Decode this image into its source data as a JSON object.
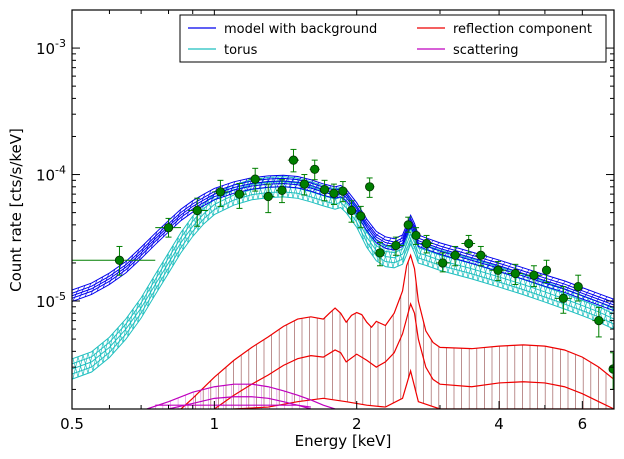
{
  "chart_data": {
    "type": "line",
    "xlabel": "Energy [keV]",
    "ylabel": "Count rate [cts/s/keV]",
    "xscale": "log",
    "yscale": "log",
    "xlim": [
      0.5,
      7.0
    ],
    "ylim": [
      1.4e-06,
      0.002
    ],
    "xticks": [
      {
        "value": 0.5,
        "label": "0.5"
      },
      {
        "value": 1,
        "label": "1"
      },
      {
        "value": 2,
        "label": "2"
      },
      {
        "value": 4,
        "label": "4"
      },
      {
        "value": 6,
        "label": "6"
      }
    ],
    "yticks": [
      {
        "value": 1e-05,
        "base": "10",
        "exp": "-5"
      },
      {
        "value": 0.0001,
        "base": "10",
        "exp": "-4"
      },
      {
        "value": 0.001,
        "base": "10",
        "exp": "-3"
      }
    ],
    "legend_position": "top-right",
    "legend": [
      {
        "label": "model with background",
        "color": "#0000ee"
      },
      {
        "label": "reflection component",
        "color": "#ee0000"
      },
      {
        "label": "torus",
        "color": "#1fbfbf"
      },
      {
        "label": "scattering",
        "color": "#bf00bf"
      }
    ],
    "colors": {
      "data": "#007f00",
      "model": "#0000ee",
      "torus": "#1fbfbf",
      "reflection": "#ee0000",
      "reflection_band": "#a06060",
      "scattering": "#bf00bf"
    },
    "data_points": [
      {
        "x": 0.63,
        "xlo": 0.5,
        "xhi": 0.75,
        "y": 2.1e-05,
        "ylo": 1.6e-05,
        "yhi": 2.7e-05
      },
      {
        "x": 0.8,
        "xlo": 0.75,
        "xhi": 0.85,
        "y": 3.8e-05,
        "ylo": 3.2e-05,
        "yhi": 4.5e-05
      },
      {
        "x": 0.92,
        "xlo": 0.88,
        "xhi": 0.97,
        "y": 5.2e-05,
        "ylo": 3.9e-05,
        "yhi": 6.5e-05
      },
      {
        "x": 1.03,
        "xlo": 0.99,
        "xhi": 1.07,
        "y": 7.3e-05,
        "ylo": 5.6e-05,
        "yhi": 9e-05
      },
      {
        "x": 1.13,
        "xlo": 1.1,
        "xhi": 1.17,
        "y": 7e-05,
        "ylo": 5.4e-05,
        "yhi": 8.5e-05
      },
      {
        "x": 1.22,
        "xlo": 1.18,
        "xhi": 1.26,
        "y": 9.2e-05,
        "ylo": 7.4e-05,
        "yhi": 0.000112
      },
      {
        "x": 1.3,
        "xlo": 1.27,
        "xhi": 1.34,
        "y": 6.7e-05,
        "ylo": 5e-05,
        "yhi": 8.4e-05
      },
      {
        "x": 1.39,
        "xlo": 1.35,
        "xhi": 1.42,
        "y": 7.5e-05,
        "ylo": 6e-05,
        "yhi": 9.1e-05
      },
      {
        "x": 1.47,
        "xlo": 1.43,
        "xhi": 1.51,
        "y": 0.00013,
        "ylo": 0.000105,
        "yhi": 0.000158
      },
      {
        "x": 1.55,
        "xlo": 1.52,
        "xhi": 1.59,
        "y": 8.4e-05,
        "ylo": 6.9e-05,
        "yhi": 0.0001
      },
      {
        "x": 1.63,
        "xlo": 1.59,
        "xhi": 1.67,
        "y": 0.00011,
        "ylo": 9.1e-05,
        "yhi": 0.00013
      },
      {
        "x": 1.71,
        "xlo": 1.67,
        "xhi": 1.75,
        "y": 7.6e-05,
        "ylo": 6.2e-05,
        "yhi": 9e-05
      },
      {
        "x": 1.79,
        "xlo": 1.75,
        "xhi": 1.83,
        "y": 7.1e-05,
        "ylo": 5.8e-05,
        "yhi": 8.4e-05
      },
      {
        "x": 1.87,
        "xlo": 1.83,
        "xhi": 1.91,
        "y": 7.4e-05,
        "ylo": 6.1e-05,
        "yhi": 8.8e-05
      },
      {
        "x": 1.95,
        "xlo": 1.91,
        "xhi": 1.99,
        "y": 5.2e-05,
        "ylo": 4.2e-05,
        "yhi": 6.2e-05
      },
      {
        "x": 2.04,
        "xlo": 1.99,
        "xhi": 2.09,
        "y": 4.7e-05,
        "ylo": 3.8e-05,
        "yhi": 5.6e-05
      },
      {
        "x": 2.13,
        "xlo": 2.09,
        "xhi": 2.18,
        "y": 8e-05,
        "ylo": 6.6e-05,
        "yhi": 9.4e-05
      },
      {
        "x": 2.24,
        "xlo": 2.18,
        "xhi": 2.3,
        "y": 2.4e-05,
        "ylo": 1.9e-05,
        "yhi": 2.9e-05
      },
      {
        "x": 2.42,
        "xlo": 2.32,
        "xhi": 2.52,
        "y": 2.75e-05,
        "ylo": 2.3e-05,
        "yhi": 3.2e-05
      },
      {
        "x": 2.57,
        "xlo": 2.52,
        "xhi": 2.62,
        "y": 4e-05,
        "ylo": 3.5e-05,
        "yhi": 4.6e-05
      },
      {
        "x": 2.67,
        "xlo": 2.62,
        "xhi": 2.72,
        "y": 3.3e-05,
        "ylo": 2.8e-05,
        "yhi": 3.8e-05
      },
      {
        "x": 2.81,
        "xlo": 2.73,
        "xhi": 2.9,
        "y": 2.85e-05,
        "ylo": 2.4e-05,
        "yhi": 3.3e-05
      },
      {
        "x": 3.04,
        "xlo": 2.94,
        "xhi": 3.15,
        "y": 2e-05,
        "ylo": 1.7e-05,
        "yhi": 2.4e-05
      },
      {
        "x": 3.23,
        "xlo": 3.15,
        "xhi": 3.32,
        "y": 2.3e-05,
        "ylo": 1.9e-05,
        "yhi": 2.7e-05
      },
      {
        "x": 3.45,
        "xlo": 3.33,
        "xhi": 3.56,
        "y": 2.85e-05,
        "ylo": 2.4e-05,
        "yhi": 3.3e-05
      },
      {
        "x": 3.66,
        "xlo": 3.56,
        "xhi": 3.77,
        "y": 2.3e-05,
        "ylo": 1.9e-05,
        "yhi": 2.7e-05
      },
      {
        "x": 3.98,
        "xlo": 3.82,
        "xhi": 4.14,
        "y": 1.75e-05,
        "ylo": 1.45e-05,
        "yhi": 2.05e-05
      },
      {
        "x": 4.33,
        "xlo": 4.17,
        "xhi": 4.49,
        "y": 1.65e-05,
        "ylo": 1.35e-05,
        "yhi": 1.95e-05
      },
      {
        "x": 4.74,
        "xlo": 4.55,
        "xhi": 4.94,
        "y": 1.6e-05,
        "ylo": 1.3e-05,
        "yhi": 1.9e-05
      },
      {
        "x": 5.04,
        "xlo": 4.94,
        "xhi": 5.14,
        "y": 1.75e-05,
        "ylo": 1.4e-05,
        "yhi": 2.1e-05
      },
      {
        "x": 5.47,
        "xlo": 5.25,
        "xhi": 5.7,
        "y": 1.05e-05,
        "ylo": 8e-06,
        "yhi": 1.3e-05
      },
      {
        "x": 5.88,
        "xlo": 5.78,
        "xhi": 5.98,
        "y": 1.3e-05,
        "ylo": 1e-05,
        "yhi": 1.6e-05
      },
      {
        "x": 6.5,
        "xlo": 6.3,
        "xhi": 6.7,
        "y": 7e-06,
        "ylo": 5.2e-06,
        "yhi": 8.9e-06
      },
      {
        "x": 6.97,
        "xlo": 6.85,
        "xhi": 7.0,
        "y": 2.9e-06,
        "ylo": 2e-06,
        "yhi": 3.9e-06
      }
    ],
    "series": [
      {
        "key": "model",
        "band_lines": [
          -0.045,
          -0.02,
          0,
          0.02,
          0.045
        ],
        "points": [
          [
            0.5,
            1.1e-05
          ],
          [
            0.55,
            1.25e-05
          ],
          [
            0.6,
            1.5e-05
          ],
          [
            0.65,
            1.85e-05
          ],
          [
            0.7,
            2.4e-05
          ],
          [
            0.75,
            3.1e-05
          ],
          [
            0.8,
            3.9e-05
          ],
          [
            0.85,
            4.8e-05
          ],
          [
            0.9,
            5.6e-05
          ],
          [
            0.95,
            6.3e-05
          ],
          [
            1.0,
            7e-05
          ],
          [
            1.1,
            7.9e-05
          ],
          [
            1.2,
            8.5e-05
          ],
          [
            1.3,
            8.8e-05
          ],
          [
            1.4,
            8.9e-05
          ],
          [
            1.5,
            8.7e-05
          ],
          [
            1.6,
            8.2e-05
          ],
          [
            1.7,
            7.6e-05
          ],
          [
            1.8,
            7.2e-05
          ],
          [
            1.85,
            7.4e-05
          ],
          [
            1.9,
            6.9e-05
          ],
          [
            2.0,
            5.4e-05
          ],
          [
            2.1,
            4e-05
          ],
          [
            2.2,
            3.2e-05
          ],
          [
            2.3,
            2.9e-05
          ],
          [
            2.4,
            2.8e-05
          ],
          [
            2.5,
            3e-05
          ],
          [
            2.55,
            3.6e-05
          ],
          [
            2.6,
            4.3e-05
          ],
          [
            2.65,
            3.7e-05
          ],
          [
            2.7,
            3e-05
          ],
          [
            2.8,
            2.85e-05
          ],
          [
            3.0,
            2.6e-05
          ],
          [
            3.5,
            2.2e-05
          ],
          [
            4.0,
            1.9e-05
          ],
          [
            4.5,
            1.65e-05
          ],
          [
            5.0,
            1.45e-05
          ],
          [
            5.5,
            1.3e-05
          ],
          [
            6.0,
            1.15e-05
          ],
          [
            6.5,
            1.03e-05
          ],
          [
            7.0,
            9.3e-06
          ]
        ]
      },
      {
        "key": "torus",
        "band_lines": [
          -0.08,
          -0.04,
          0,
          0.04,
          0.08
        ],
        "points": [
          [
            0.5,
            2.9e-06
          ],
          [
            0.55,
            3.3e-06
          ],
          [
            0.6,
            4.3e-06
          ],
          [
            0.65,
            6e-06
          ],
          [
            0.7,
            8.8e-06
          ],
          [
            0.75,
            1.35e-05
          ],
          [
            0.8,
            2e-05
          ],
          [
            0.85,
            2.9e-05
          ],
          [
            0.9,
            3.9e-05
          ],
          [
            0.95,
            4.9e-05
          ],
          [
            1.0,
            5.8e-05
          ],
          [
            1.1,
            6.9e-05
          ],
          [
            1.2,
            7.6e-05
          ],
          [
            1.3,
            7.9e-05
          ],
          [
            1.4,
            8e-05
          ],
          [
            1.5,
            7.8e-05
          ],
          [
            1.6,
            7.3e-05
          ],
          [
            1.7,
            6.8e-05
          ],
          [
            1.8,
            6.4e-05
          ],
          [
            1.85,
            6.6e-05
          ],
          [
            1.9,
            6e-05
          ],
          [
            2.0,
            4.6e-05
          ],
          [
            2.1,
            3.2e-05
          ],
          [
            2.2,
            2.5e-05
          ],
          [
            2.3,
            2.25e-05
          ],
          [
            2.4,
            2.2e-05
          ],
          [
            2.5,
            2.35e-05
          ],
          [
            2.55,
            2.8e-05
          ],
          [
            2.6,
            3.4e-05
          ],
          [
            2.65,
            2.9e-05
          ],
          [
            2.7,
            2.4e-05
          ],
          [
            2.8,
            2.3e-05
          ],
          [
            3.0,
            2.1e-05
          ],
          [
            3.5,
            1.8e-05
          ],
          [
            4.0,
            1.55e-05
          ],
          [
            4.5,
            1.35e-05
          ],
          [
            5.0,
            1.18e-05
          ],
          [
            5.5,
            1.04e-05
          ],
          [
            6.0,
            9.2e-06
          ],
          [
            6.5,
            8.2e-06
          ],
          [
            7.0,
            7.2e-06
          ]
        ]
      },
      {
        "key": "reflection",
        "curves": [
          [
            [
              0.85,
              1.4e-06
            ],
            [
              0.9,
              1.7e-06
            ],
            [
              1.0,
              2.5e-06
            ],
            [
              1.1,
              3.4e-06
            ],
            [
              1.2,
              4.3e-06
            ],
            [
              1.3,
              5.2e-06
            ],
            [
              1.4,
              6.3e-06
            ],
            [
              1.5,
              7.2e-06
            ],
            [
              1.6,
              7.5e-06
            ],
            [
              1.7,
              7.2e-06
            ],
            [
              1.75,
              8e-06
            ],
            [
              1.8,
              8.8e-06
            ],
            [
              1.85,
              8e-06
            ],
            [
              1.9,
              6.8e-06
            ],
            [
              1.95,
              7.7e-06
            ],
            [
              2.0,
              8.1e-06
            ],
            [
              2.05,
              7.8e-06
            ],
            [
              2.1,
              6.8e-06
            ],
            [
              2.15,
              6.2e-06
            ],
            [
              2.2,
              6.9e-06
            ],
            [
              2.3,
              6.4e-06
            ],
            [
              2.4,
              8e-06
            ],
            [
              2.5,
              1.2e-05
            ],
            [
              2.55,
              1.9e-05
            ],
            [
              2.6,
              2.3e-05
            ],
            [
              2.65,
              1.8e-05
            ],
            [
              2.7,
              1e-05
            ],
            [
              2.8,
              5.8e-06
            ],
            [
              2.9,
              4.7e-06
            ],
            [
              3.0,
              4.3e-06
            ],
            [
              3.5,
              4.2e-06
            ],
            [
              4.0,
              4.4e-06
            ],
            [
              4.5,
              4.5e-06
            ],
            [
              5.0,
              4.4e-06
            ],
            [
              5.5,
              4.1e-06
            ],
            [
              6.0,
              3.6e-06
            ],
            [
              6.5,
              3e-06
            ],
            [
              7.0,
              2.4e-06
            ]
          ],
          [
            [
              1.0,
              1.4e-06
            ],
            [
              1.1,
              1.8e-06
            ],
            [
              1.2,
              2.2e-06
            ],
            [
              1.3,
              2.6e-06
            ],
            [
              1.4,
              3.1e-06
            ],
            [
              1.5,
              3.5e-06
            ],
            [
              1.6,
              3.7e-06
            ],
            [
              1.7,
              3.6e-06
            ],
            [
              1.8,
              4.1e-06
            ],
            [
              1.85,
              3.9e-06
            ],
            [
              1.9,
              3.3e-06
            ],
            [
              2.0,
              3.8e-06
            ],
            [
              2.1,
              3.4e-06
            ],
            [
              2.2,
              3e-06
            ],
            [
              2.3,
              3.3e-06
            ],
            [
              2.4,
              3.9e-06
            ],
            [
              2.5,
              5.5e-06
            ],
            [
              2.6,
              9.5e-06
            ],
            [
              2.65,
              8e-06
            ],
            [
              2.7,
              5e-06
            ],
            [
              2.8,
              3e-06
            ],
            [
              2.9,
              2.4e-06
            ],
            [
              3.0,
              2.2e-06
            ],
            [
              3.5,
              2.1e-06
            ],
            [
              4.0,
              2.25e-06
            ],
            [
              4.5,
              2.3e-06
            ],
            [
              5.0,
              2.25e-06
            ],
            [
              5.5,
              2.1e-06
            ],
            [
              6.0,
              1.85e-06
            ],
            [
              6.5,
              1.6e-06
            ],
            [
              7.0,
              1.4e-06
            ]
          ],
          [
            [
              1.1,
              1.4e-06
            ],
            [
              1.3,
              1.45e-06
            ],
            [
              1.5,
              1.6e-06
            ],
            [
              1.7,
              1.7e-06
            ],
            [
              1.9,
              1.6e-06
            ],
            [
              2.1,
              1.5e-06
            ],
            [
              2.3,
              1.45e-06
            ],
            [
              2.5,
              1.7e-06
            ],
            [
              2.6,
              2.8e-06
            ],
            [
              2.7,
              1.6e-06
            ],
            [
              3.0,
              1.4e-06
            ],
            [
              4.0,
              1.4e-06
            ],
            [
              5.0,
              1.4e-06
            ],
            [
              7.0,
              1.4e-06
            ]
          ]
        ]
      },
      {
        "key": "scattering",
        "curves": [
          [
            [
              0.72,
              1.4e-06
            ],
            [
              0.8,
              1.6e-06
            ],
            [
              0.9,
              1.9e-06
            ],
            [
              1.0,
              2.1e-06
            ],
            [
              1.1,
              2.2e-06
            ],
            [
              1.2,
              2.2e-06
            ],
            [
              1.3,
              2.1e-06
            ],
            [
              1.4,
              1.95e-06
            ],
            [
              1.5,
              1.8e-06
            ],
            [
              1.6,
              1.65e-06
            ],
            [
              1.7,
              1.5e-06
            ],
            [
              1.8,
              1.4e-06
            ]
          ],
          [
            [
              0.8,
              1.4e-06
            ],
            [
              0.9,
              1.55e-06
            ],
            [
              1.0,
              1.7e-06
            ],
            [
              1.1,
              1.75e-06
            ],
            [
              1.2,
              1.75e-06
            ],
            [
              1.3,
              1.7e-06
            ],
            [
              1.4,
              1.6e-06
            ],
            [
              1.5,
              1.5e-06
            ],
            [
              1.6,
              1.4e-06
            ]
          ],
          [
            [
              0.75,
              1.5e-06
            ],
            [
              1.0,
              1.5e-06
            ],
            [
              1.5,
              1.5e-06
            ],
            [
              1.6,
              1.45e-06
            ]
          ]
        ]
      }
    ]
  }
}
